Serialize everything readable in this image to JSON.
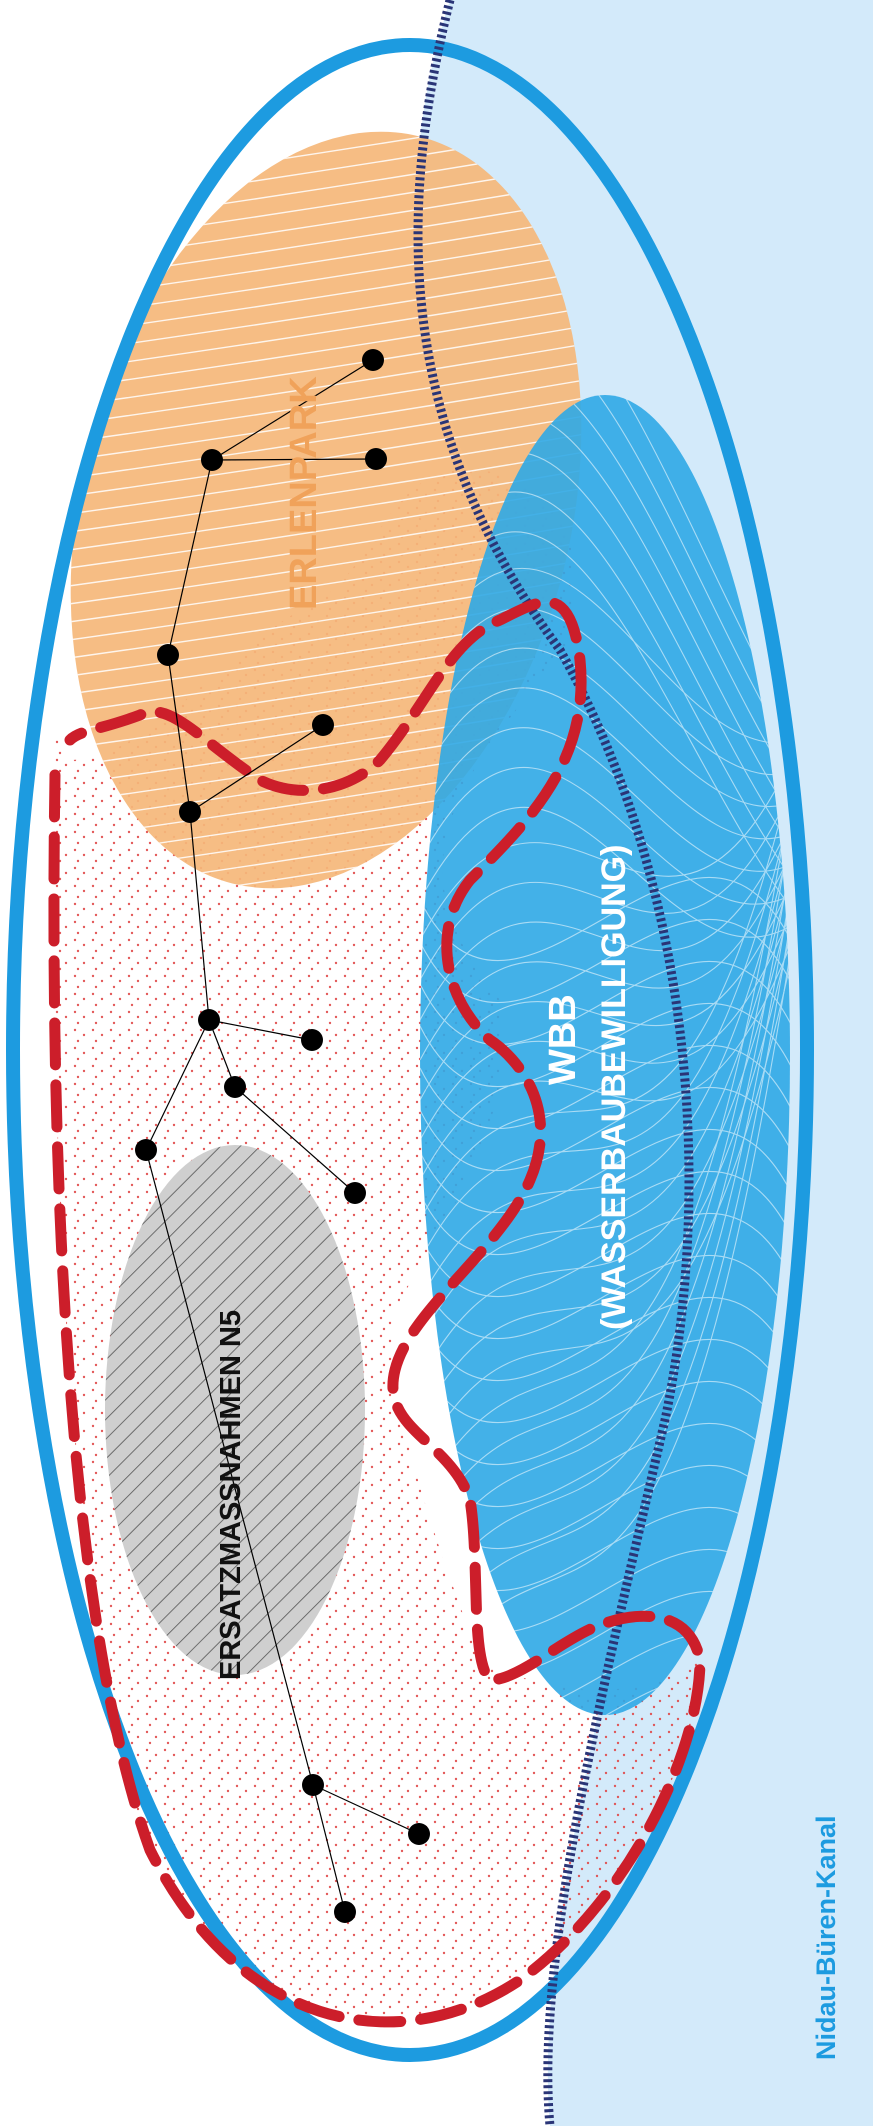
{
  "labels": {
    "erlenpark": "ERLENPARK",
    "wbb": "WBB",
    "wbb_full": "(WASSERBAUBEWILLIGUNG)",
    "ersatz": "ERSATZMASSNAHMEN N5",
    "canal": "Nidau-Büren-Kanal"
  },
  "colors": {
    "canal_water": "#d3eafa",
    "outer_boundary": "#1d9be0",
    "erlenpark": "#f5b77a",
    "wbb": "#2fa8e6",
    "ersatz": "#cfcfcf",
    "dashed_boundary": "#cc1e2a",
    "riverbank_line": "#2a3577",
    "network": "#000000"
  }
}
